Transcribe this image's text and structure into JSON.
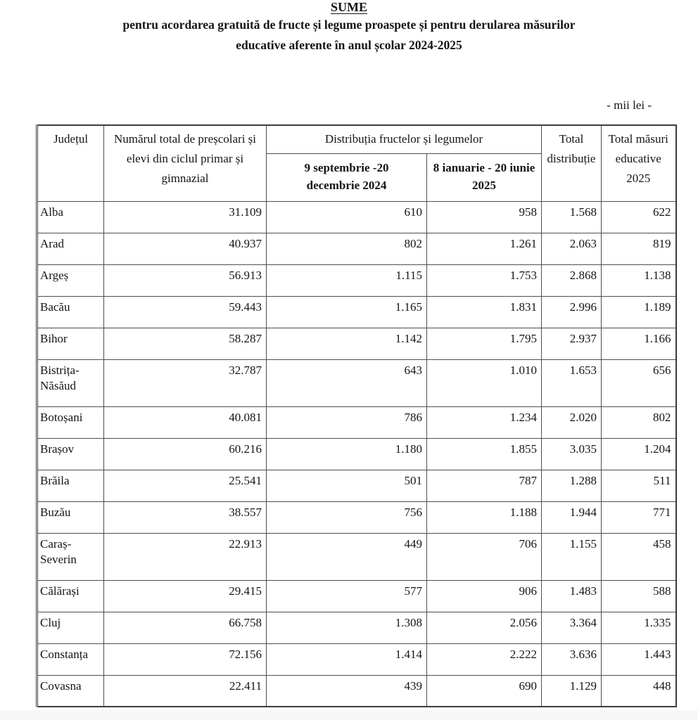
{
  "title": "SUME",
  "subtitle_line1": "pentru acordarea gratuită de fructe și legume proaspete și pentru derularea măsurilor",
  "subtitle_line2": "educative aferente în anul școlar 2024-2025",
  "unit_note": "- mii lei -",
  "table": {
    "columns": {
      "county": "Județul",
      "total_students": "Numărul total de preșcolari și elevi din ciclul primar și gimnazial",
      "distribution_group": "Distribuția fructelor și legumelor",
      "period1": "9 septembrie -20 decembrie 2024",
      "period2": "8 ianuarie - 20 iunie 2025",
      "total_distribution": "Total distribuție",
      "total_educational": "Total măsuri educative 2025"
    },
    "rows": [
      {
        "county": "Alba",
        "students": "31.109",
        "p1": "610",
        "p2": "958",
        "total_dist": "1.568",
        "total_edu": "622"
      },
      {
        "county": "Arad",
        "students": "40.937",
        "p1": "802",
        "p2": "1.261",
        "total_dist": "2.063",
        "total_edu": "819"
      },
      {
        "county": "Argeș",
        "students": "56.913",
        "p1": "1.115",
        "p2": "1.753",
        "total_dist": "2.868",
        "total_edu": "1.138"
      },
      {
        "county": "Bacău",
        "students": "59.443",
        "p1": "1.165",
        "p2": "1.831",
        "total_dist": "2.996",
        "total_edu": "1.189"
      },
      {
        "county": "Bihor",
        "students": "58.287",
        "p1": "1.142",
        "p2": "1.795",
        "total_dist": "2.937",
        "total_edu": "1.166"
      },
      {
        "county": "Bistrița-Năsăud",
        "students": "32.787",
        "p1": "643",
        "p2": "1.010",
        "total_dist": "1.653",
        "total_edu": "656"
      },
      {
        "county": "Botoșani",
        "students": "40.081",
        "p1": "786",
        "p2": "1.234",
        "total_dist": "2.020",
        "total_edu": "802"
      },
      {
        "county": "Brașov",
        "students": "60.216",
        "p1": "1.180",
        "p2": "1.855",
        "total_dist": "3.035",
        "total_edu": "1.204"
      },
      {
        "county": "Brăila",
        "students": "25.541",
        "p1": "501",
        "p2": "787",
        "total_dist": "1.288",
        "total_edu": "511"
      },
      {
        "county": "Buzău",
        "students": "38.557",
        "p1": "756",
        "p2": "1.188",
        "total_dist": "1.944",
        "total_edu": "771"
      },
      {
        "county": "Caraș-Severin",
        "students": "22.913",
        "p1": "449",
        "p2": "706",
        "total_dist": "1.155",
        "total_edu": "458"
      },
      {
        "county": "Călărași",
        "students": "29.415",
        "p1": "577",
        "p2": "906",
        "total_dist": "1.483",
        "total_edu": "588"
      },
      {
        "county": "Cluj",
        "students": "66.758",
        "p1": "1.308",
        "p2": "2.056",
        "total_dist": "3.364",
        "total_edu": "1.335"
      },
      {
        "county": "Constanța",
        "students": "72.156",
        "p1": "1.414",
        "p2": "2.222",
        "total_dist": "3.636",
        "total_edu": "1.443"
      },
      {
        "county": "Covasna",
        "students": "22.411",
        "p1": "439",
        "p2": "690",
        "total_dist": "1.129",
        "total_edu": "448"
      }
    ]
  }
}
